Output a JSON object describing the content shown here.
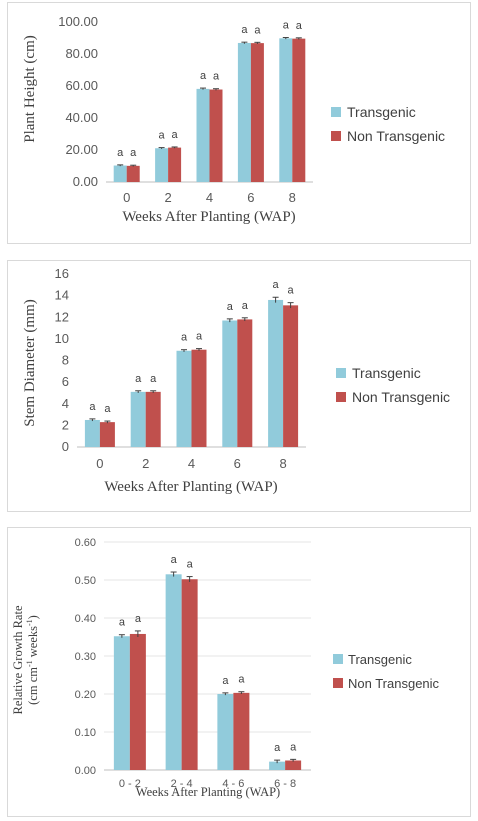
{
  "colors": {
    "transgenic": "#91cbdb",
    "non_transgenic": "#c0504d"
  },
  "chart_data": [
    {
      "type": "bar",
      "xlabel": "Weeks After Planting (WAP)",
      "ylabel": "Plant Height (cm)",
      "categories": [
        "0",
        "2",
        "4",
        "6",
        "8"
      ],
      "ylim": [
        0,
        100
      ],
      "yticks": [
        "0.00",
        "20.00",
        "40.00",
        "60.00",
        "80.00",
        "100.00"
      ],
      "grid": false,
      "legend": "right",
      "series": [
        {
          "name": "Transgenic",
          "values": [
            10.3,
            21.1,
            58.2,
            86.9,
            89.8
          ],
          "errors": [
            0.4,
            0.4,
            0.5,
            0.5,
            0.5
          ]
        },
        {
          "name": "Non Transgenic",
          "values": [
            10.1,
            21.5,
            57.8,
            86.8,
            89.6
          ],
          "errors": [
            0.4,
            0.4,
            0.5,
            0.5,
            0.5
          ]
        }
      ],
      "significance": [
        "a",
        "a",
        "a",
        "a",
        "a",
        "a",
        "a",
        "a",
        "a",
        "a"
      ]
    },
    {
      "type": "bar",
      "xlabel": "Weeks After Planting (WAP)",
      "ylabel": "Stem Diameter (mm)",
      "categories": [
        "0",
        "2",
        "4",
        "6",
        "8"
      ],
      "ylim": [
        0,
        16
      ],
      "yticks": [
        "0",
        "2",
        "4",
        "6",
        "8",
        "10",
        "12",
        "14",
        "16"
      ],
      "grid": false,
      "legend": "right",
      "series": [
        {
          "name": "Transgenic",
          "values": [
            2.5,
            5.1,
            8.9,
            11.7,
            13.6
          ],
          "errors": [
            0.1,
            0.1,
            0.1,
            0.15,
            0.25
          ]
        },
        {
          "name": "Non Transgenic",
          "values": [
            2.3,
            5.1,
            9.0,
            11.8,
            13.1
          ],
          "errors": [
            0.1,
            0.1,
            0.1,
            0.15,
            0.25
          ]
        }
      ],
      "significance": [
        "a",
        "a",
        "a",
        "a",
        "a",
        "a",
        "a",
        "a",
        "a",
        "a"
      ]
    },
    {
      "type": "bar",
      "xlabel": "Weeks After Planting (WAP)",
      "ylabel_line1": "Relative Growth Rate",
      "ylabel_line2_main": "(cm cm",
      "ylabel_line2_sup1": "-1",
      "ylabel_line2_mid": " weeks",
      "ylabel_line2_sup2": "-1",
      "ylabel_line2_end": ")",
      "categories": [
        "0 - 2",
        "2 - 4",
        "4 - 6",
        "6 - 8"
      ],
      "ylim": [
        0,
        0.6
      ],
      "yticks": [
        "0.00",
        "0.10",
        "0.20",
        "0.30",
        "0.40",
        "0.50",
        "0.60"
      ],
      "grid": true,
      "legend": "right",
      "series": [
        {
          "name": "Transgenic",
          "values": [
            0.352,
            0.515,
            0.2,
            0.022
          ],
          "errors": [
            0.004,
            0.006,
            0.003,
            0.004
          ]
        },
        {
          "name": "Non Transgenic",
          "values": [
            0.358,
            0.502,
            0.203,
            0.025
          ],
          "errors": [
            0.008,
            0.007,
            0.003,
            0.003
          ]
        }
      ],
      "significance": [
        "a",
        "a",
        "a",
        "a",
        "a",
        "a",
        "a",
        "a"
      ]
    }
  ]
}
